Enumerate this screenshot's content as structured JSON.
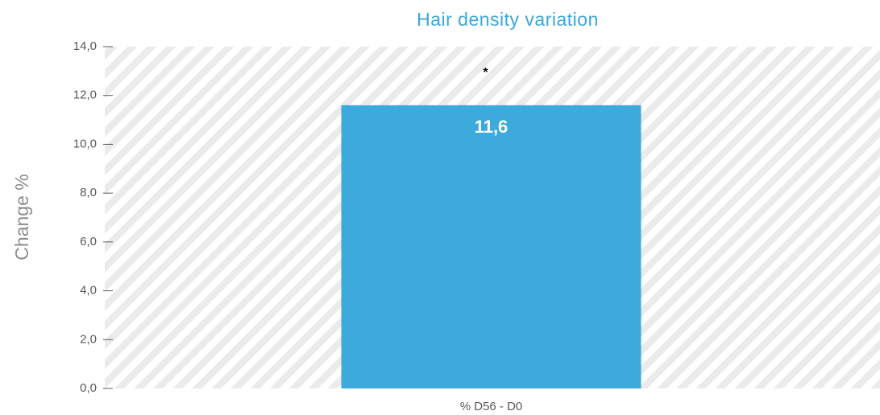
{
  "chart_data": {
    "type": "bar",
    "title": "Hair density variation",
    "xlabel": "",
    "ylabel": "Change %",
    "categories": [
      "% D56 - D0"
    ],
    "values": [
      11.6
    ],
    "value_labels": [
      "11,6"
    ],
    "annotations": [
      "*"
    ],
    "ylim": [
      0,
      14
    ],
    "yticks": [
      0,
      2,
      4,
      6,
      8,
      10,
      12,
      14
    ],
    "ytick_labels": [
      "0,0",
      "2,0",
      "4,0",
      "6,0",
      "8,0",
      "10,0",
      "12,0",
      "14,0"
    ],
    "grid": false,
    "background_pattern": "diagonal-stripes",
    "colors": {
      "bar": "#3CAADC",
      "title": "#3AA9DC",
      "stripe": "#EBEBEB",
      "axis": "#595959",
      "ylabel": "#8C8C8C"
    }
  }
}
